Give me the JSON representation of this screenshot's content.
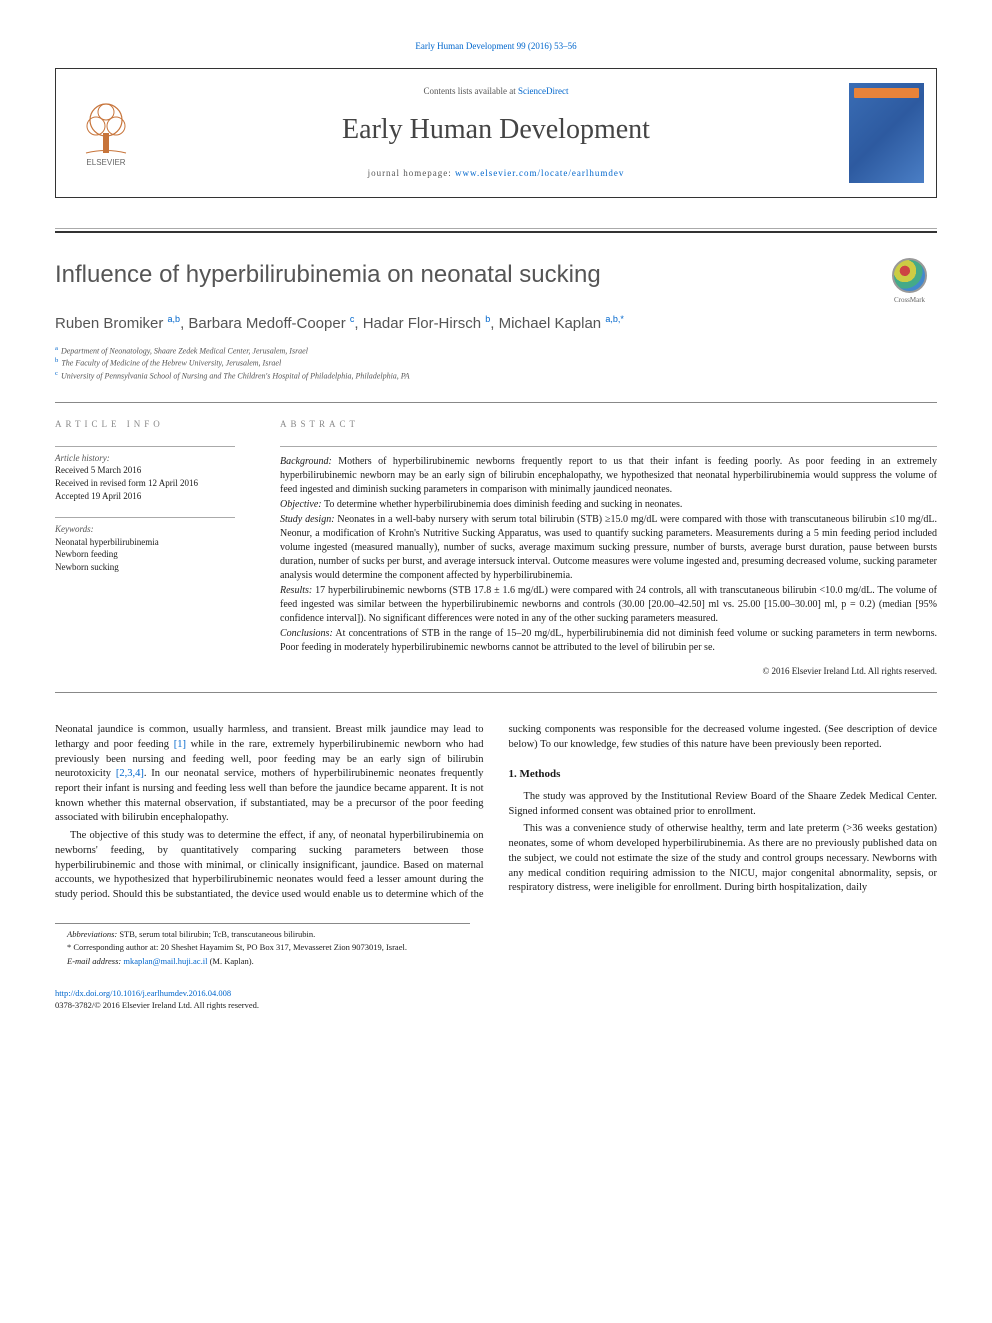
{
  "journal_ref_top": "Early Human Development 99 (2016) 53–56",
  "header": {
    "contents_prefix": "Contents lists available at ",
    "contents_link": "ScienceDirect",
    "journal_title": "Early Human Development",
    "homepage_prefix": "journal homepage: ",
    "homepage_link": "www.elsevier.com/locate/earlhumdev",
    "elsevier_label": "ELSEVIER"
  },
  "article": {
    "title": "Influence of hyperbilirubinemia on neonatal sucking",
    "crossmark_label": "CrossMark",
    "authors_html": "Ruben Bromiker|a,b|, Barbara Medoff-Cooper|c|, Hadar Flor-Hirsch|b|, Michael Kaplan|a,b,*|",
    "authors": [
      {
        "name": "Ruben Bromiker ",
        "sup": "a,b"
      },
      {
        "name": ", Barbara Medoff-Cooper ",
        "sup": "c"
      },
      {
        "name": ", Hadar Flor-Hirsch ",
        "sup": "b"
      },
      {
        "name": ", Michael Kaplan ",
        "sup": "a,b,*"
      }
    ],
    "affiliations": [
      {
        "sup": "a",
        "text": "Department of Neonatology, Shaare Zedek Medical Center, Jerusalem, Israel"
      },
      {
        "sup": "b",
        "text": "The Faculty of Medicine of the Hebrew University, Jerusalem, Israel"
      },
      {
        "sup": "c",
        "text": "University of Pennsylvania School of Nursing and The Children's Hospital of Philadelphia, Philadelphia, PA"
      }
    ]
  },
  "info": {
    "section_label_info": "article info",
    "section_label_abstract": "abstract",
    "history_label": "Article history:",
    "history": [
      "Received 5 March 2016",
      "Received in revised form 12 April 2016",
      "Accepted 19 April 2016"
    ],
    "keywords_label": "Keywords:",
    "keywords": [
      "Neonatal hyperbilirubinemia",
      "Newborn feeding",
      "Newborn sucking"
    ]
  },
  "abstract": {
    "background_label": "Background:",
    "background": " Mothers of hyperbilirubinemic newborns frequently report to us that their infant is feeding poorly. As poor feeding in an extremely hyperbilirubinemic newborn may be an early sign of bilirubin encephalopathy, we hypothesized that neonatal hyperbilirubinemia would suppress the volume of feed ingested and diminish sucking parameters in comparison with minimally jaundiced neonates.",
    "objective_label": "Objective:",
    "objective": " To determine whether hyperbilirubinemia does diminish feeding and sucking in neonates.",
    "design_label": "Study design:",
    "design": " Neonates in a well-baby nursery with serum total bilirubin (STB) ≥15.0 mg/dL were compared with those with transcutaneous bilirubin ≤10 mg/dL. Neonur, a modification of Krohn's Nutritive Sucking Apparatus, was used to quantify sucking parameters. Measurements during a 5 min feeding period included volume ingested (measured manually), number of sucks, average maximum sucking pressure, number of bursts, average burst duration, pause between bursts duration, number of sucks per burst, and average intersuck interval. Outcome measures were volume ingested and, presuming decreased volume, sucking parameter analysis would determine the component affected by hyperbilirubinemia.",
    "results_label": "Results:",
    "results": " 17 hyperbilirubinemic newborns (STB 17.8 ± 1.6 mg/dL) were compared with 24 controls, all with transcutaneous bilirubin <10.0 mg/dL. The volume of feed ingested was similar between the hyperbilirubinemic newborns and controls (30.00 [20.00–42.50] ml vs. 25.00 [15.00–30.00] ml, p = 0.2) (median [95% confidence interval]). No significant differences were noted in any of the other sucking parameters measured.",
    "conclusions_label": "Conclusions:",
    "conclusions": " At concentrations of STB in the range of 15–20 mg/dL, hyperbilirubinemia did not diminish feed volume or sucking parameters in term newborns. Poor feeding in moderately hyperbilirubinemic newborns cannot be attributed to the level of bilirubin per se.",
    "copyright": "© 2016 Elsevier Ireland Ltd. All rights reserved."
  },
  "body": {
    "p1a": "Neonatal jaundice is common, usually harmless, and transient. Breast milk jaundice may lead to lethargy and poor feeding ",
    "ref1": "[1]",
    "p1b": " while in the rare, extremely hyperbilirubinemic newborn who had previously been nursing and feeding well, poor feeding may be an early sign of bilirubin neurotoxicity ",
    "ref234": "[2,3,4]",
    "p1c": ". In our neonatal service, mothers of hyperbilirubinemic neonates frequently report their infant is nursing and feeding less well than before the jaundice became apparent. It is not known whether this maternal observation, if substantiated, may be a precursor of the poor feeding associated with bilirubin encephalopathy.",
    "p2": "The objective of this study was to determine the effect, if any, of neonatal hyperbilirubinemia on newborns' feeding, by quantitatively comparing sucking parameters between those hyperbilirubinemic and those with minimal, or clinically insignificant, jaundice. Based on maternal accounts, we hypothesized that hyperbilirubinemic neonates would feed a lesser amount during the study period. Should this be substantiated, the device used would enable us to determine which of the sucking components was responsible for the decreased volume ingested. (See description of device below) To our knowledge, few studies of this nature have been previously been reported.",
    "methods_heading": "1. Methods",
    "m1": "The study was approved by the Institutional Review Board of the Shaare Zedek Medical Center. Signed informed consent was obtained prior to enrollment.",
    "m2": "This was a convenience study of otherwise healthy, term and late preterm (>36 weeks gestation) neonates, some of whom developed hyperbilirubinemia. As there are no previously published data on the subject, we could not estimate the size of the study and control groups necessary. Newborns with any medical condition requiring admission to the NICU, major congenital abnormality, sepsis, or respiratory distress, were ineligible for enrollment. During birth hospitalization, daily"
  },
  "footnotes": {
    "abbrev_label": "Abbreviations:",
    "abbrev": " STB, serum total bilirubin; TcB, transcutaneous bilirubin.",
    "corr_label": "* ",
    "corr": "Corresponding author at: 20 Sheshet Hayamim St, PO Box 317, Mevasseret Zion 9073019, Israel.",
    "email_label": "E-mail address: ",
    "email": "mkaplan@mail.huji.ac.il",
    "email_suffix": " (M. Kaplan)."
  },
  "footer": {
    "doi": "http://dx.doi.org/10.1016/j.earlhumdev.2016.04.008",
    "issn_copyright": "0378-3782/© 2016 Elsevier Ireland Ltd. All rights reserved."
  },
  "colors": {
    "link": "#0066cc",
    "text": "#1a1a1a",
    "muted": "#555",
    "rule": "#888"
  }
}
